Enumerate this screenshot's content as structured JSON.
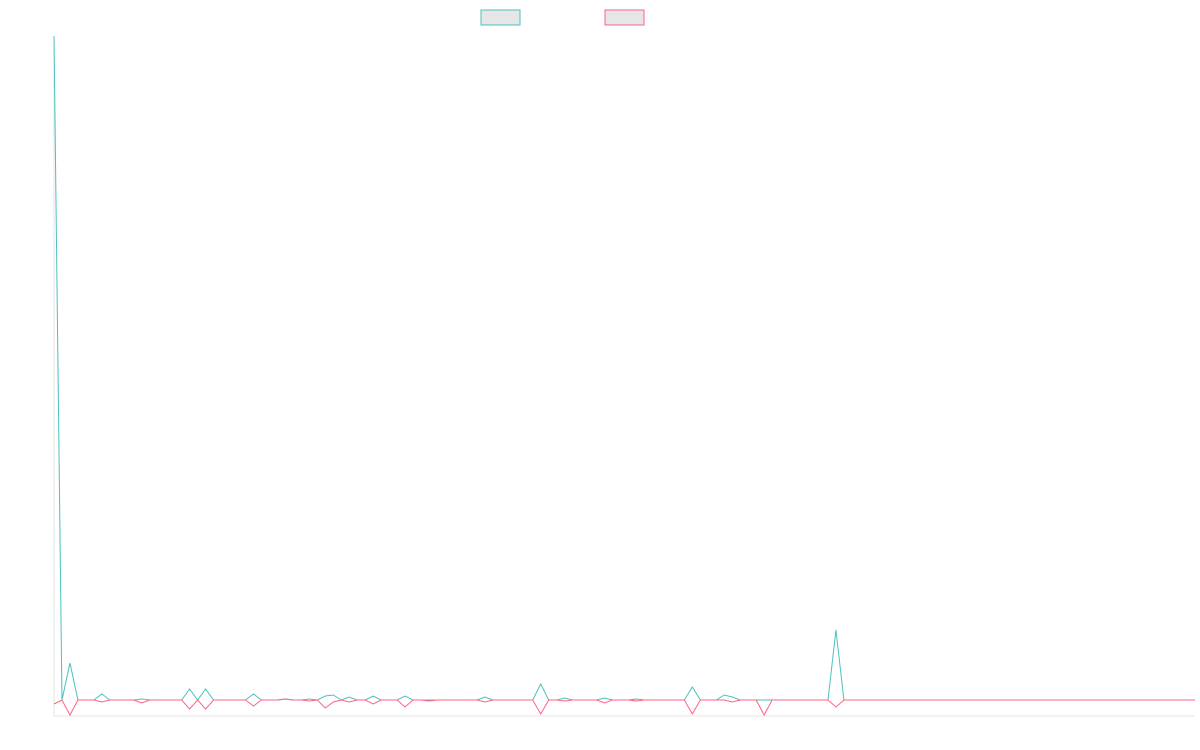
{
  "chart_data": {
    "type": "line",
    "ylim": [
      -16,
      664
    ],
    "legend": "top",
    "series": [
      {
        "color": "#4bc0c0",
        "values": [
          664,
          0,
          37,
          0,
          0,
          0,
          6,
          0,
          0,
          0,
          0,
          1,
          0,
          0,
          0,
          0,
          0,
          11,
          0,
          11,
          0,
          0,
          0,
          0,
          0,
          6,
          0,
          0,
          0,
          1,
          0,
          0,
          1,
          0,
          4,
          5,
          0,
          3,
          0,
          0,
          4,
          0,
          0,
          0,
          4,
          0,
          0,
          0,
          0,
          0,
          0,
          0,
          0,
          0,
          3,
          0,
          0,
          0,
          0,
          0,
          0,
          16,
          0,
          0,
          2,
          0,
          0,
          0,
          0,
          2,
          0,
          0,
          0,
          1,
          0,
          0,
          0,
          0,
          0,
          0,
          13,
          0,
          0,
          0,
          5,
          3,
          0,
          0,
          0,
          0,
          0,
          0,
          0,
          0,
          0,
          0,
          0,
          0,
          70,
          0,
          0,
          0,
          0,
          0,
          0,
          0,
          0,
          0,
          0,
          0,
          0,
          0,
          0,
          0,
          0,
          0,
          0,
          0,
          0,
          0,
          0,
          0,
          0,
          0,
          0,
          0,
          0,
          0,
          0,
          0,
          0,
          0,
          0,
          0,
          0,
          0,
          0,
          0,
          0,
          0,
          0,
          0,
          0,
          0
        ]
      },
      {
        "color": "#ff6384",
        "values": [
          -4,
          0,
          -15,
          0,
          0,
          0,
          -2,
          0,
          0,
          0,
          0,
          -3,
          0,
          0,
          0,
          0,
          0,
          -9,
          0,
          -9,
          0,
          0,
          0,
          0,
          0,
          -6,
          0,
          0,
          0,
          1,
          0,
          0,
          -1,
          0,
          -8,
          -2,
          0,
          -2,
          0,
          0,
          -4,
          0,
          0,
          0,
          -7,
          0,
          0,
          -1,
          0,
          0,
          0,
          0,
          0,
          0,
          -2,
          0,
          0,
          0,
          0,
          0,
          0,
          -14,
          0,
          0,
          -1,
          0,
          0,
          0,
          0,
          -3,
          0,
          0,
          0,
          -1,
          0,
          0,
          0,
          0,
          0,
          0,
          -14,
          0,
          0,
          0,
          0,
          -2,
          0,
          0,
          0,
          -15,
          0,
          0,
          0,
          0,
          0,
          0,
          0,
          0,
          -7,
          0,
          0,
          0,
          0,
          0,
          0,
          0,
          0,
          0,
          0,
          0,
          0,
          0,
          0,
          0,
          0,
          0,
          0,
          0,
          0,
          0,
          0,
          0,
          0,
          0,
          0,
          0,
          0,
          0,
          0,
          0,
          0,
          0,
          0,
          0,
          0,
          0,
          0,
          0,
          0,
          0,
          0,
          0,
          0,
          0
        ]
      }
    ]
  }
}
